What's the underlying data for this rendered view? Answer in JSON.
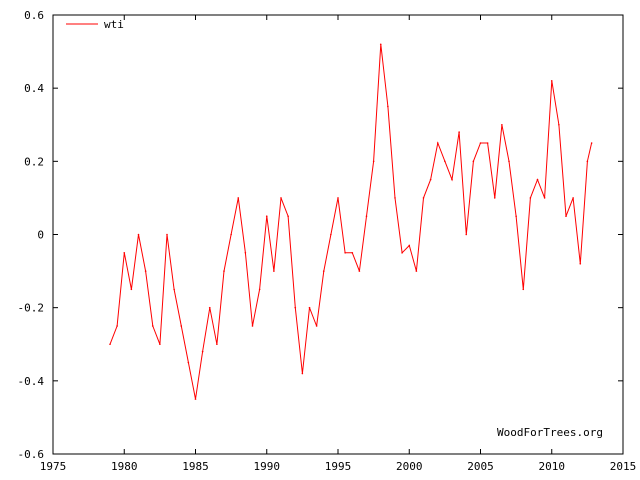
{
  "chart_data": {
    "type": "line",
    "title": "",
    "xlabel": "",
    "ylabel": "",
    "xlim": [
      1975,
      2015
    ],
    "ylim": [
      -0.6,
      0.6
    ],
    "x_ticks": [
      1975,
      1980,
      1985,
      1990,
      1995,
      2000,
      2005,
      2010,
      2015
    ],
    "y_ticks": [
      -0.6,
      -0.4,
      -0.2,
      0,
      0.2,
      0.4,
      0.6
    ],
    "y_tick_labels": [
      "-0.6",
      "-0.4",
      "-0.2",
      "0",
      "0.2",
      "0.4",
      "0.6"
    ],
    "grid": false,
    "legend_position": "top-left",
    "credit": "WoodForTrees.org",
    "series": [
      {
        "name": "wti",
        "color": "#ff0000",
        "x": [
          1979.0,
          1979.5,
          1980.0,
          1980.5,
          1981.0,
          1981.5,
          1982.0,
          1982.5,
          1983.0,
          1983.5,
          1984.0,
          1984.5,
          1985.0,
          1985.5,
          1986.0,
          1986.5,
          1987.0,
          1987.5,
          1988.0,
          1988.5,
          1989.0,
          1989.5,
          1990.0,
          1990.5,
          1991.0,
          1991.5,
          1992.0,
          1992.5,
          1993.0,
          1993.5,
          1994.0,
          1994.5,
          1995.0,
          1995.5,
          1996.0,
          1996.5,
          1997.0,
          1997.5,
          1998.0,
          1998.5,
          1999.0,
          1999.5,
          2000.0,
          2000.5,
          2001.0,
          2001.5,
          2002.0,
          2002.5,
          2003.0,
          2003.5,
          2004.0,
          2004.5,
          2005.0,
          2005.5,
          2006.0,
          2006.5,
          2007.0,
          2007.5,
          2008.0,
          2008.5,
          2009.0,
          2009.5,
          2010.0,
          2010.5,
          2011.0,
          2011.5,
          2012.0,
          2012.5,
          2012.8
        ],
        "values": [
          -0.3,
          -0.25,
          -0.05,
          -0.15,
          0.0,
          -0.1,
          -0.25,
          -0.3,
          0.0,
          -0.15,
          -0.25,
          -0.35,
          -0.45,
          -0.32,
          -0.2,
          -0.3,
          -0.1,
          0.0,
          0.1,
          -0.05,
          -0.25,
          -0.15,
          0.05,
          -0.1,
          0.1,
          0.05,
          -0.2,
          -0.38,
          -0.2,
          -0.25,
          -0.1,
          0.0,
          0.1,
          -0.05,
          -0.05,
          -0.1,
          0.05,
          0.2,
          0.52,
          0.35,
          0.1,
          -0.05,
          -0.03,
          -0.1,
          0.1,
          0.15,
          0.25,
          0.2,
          0.15,
          0.28,
          0.0,
          0.2,
          0.25,
          0.25,
          0.1,
          0.3,
          0.2,
          0.05,
          -0.15,
          0.1,
          0.15,
          0.1,
          0.42,
          0.3,
          0.05,
          0.1,
          -0.08,
          0.2,
          0.25
        ]
      }
    ]
  }
}
